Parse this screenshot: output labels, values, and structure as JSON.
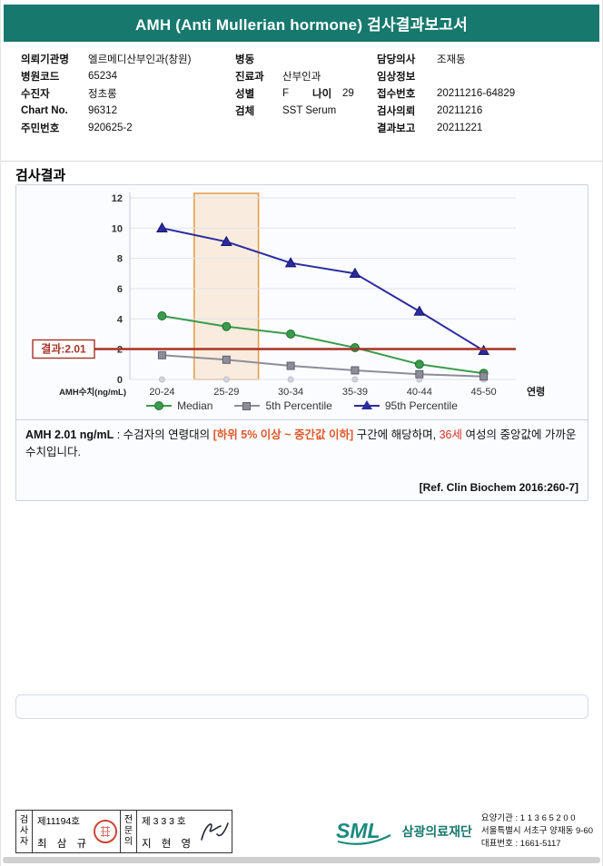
{
  "colors": {
    "teal": "#17786d",
    "highlight_orange": "#e0582a",
    "highlight_red": "#d93025"
  },
  "header": {
    "title": "AMH (Anti Mullerian hormone) 검사결과보고서"
  },
  "info": {
    "col1": [
      {
        "label": "의뢰기관명",
        "value": "엘르메디산부인과(창원)"
      },
      {
        "label": "병원코드",
        "value": "65234"
      },
      {
        "label": "수진자",
        "value": "정초롱"
      },
      {
        "label": "Chart No.",
        "value": "96312"
      },
      {
        "label": "주민번호",
        "value": "920625-2"
      }
    ],
    "col2": [
      {
        "label": "병동",
        "value": ""
      },
      {
        "label": "진료과",
        "value": "산부인과"
      },
      {
        "label": "성별",
        "value": "F",
        "label2": "나이",
        "value2": "29"
      },
      {
        "label": "검체",
        "value": "SST Serum"
      }
    ],
    "col3": [
      {
        "label": "담당의사",
        "value": "조재동"
      },
      {
        "label": "임상정보",
        "value": ""
      },
      {
        "label": "접수번호",
        "value": "20211216-64829"
      },
      {
        "label": "검사의뢰",
        "value": "20211216"
      },
      {
        "label": "결과보고",
        "value": "20211221"
      }
    ]
  },
  "section": {
    "title": "검사결과"
  },
  "chart_data": {
    "type": "line",
    "title": "",
    "categories": [
      "20-24",
      "25-29",
      "30-34",
      "35-39",
      "40-44",
      "45-50"
    ],
    "series": [
      {
        "name": "Median",
        "marker": "circle",
        "color": "#3a9c4b",
        "edge": "#1e6f35",
        "values": [
          4.2,
          3.5,
          3.0,
          2.1,
          1.0,
          0.4
        ]
      },
      {
        "name": "5th Percentile",
        "marker": "square",
        "color": "#8d8d98",
        "edge": "#606070",
        "values": [
          1.6,
          1.3,
          0.9,
          0.6,
          0.35,
          0.2
        ]
      },
      {
        "name": "95th Percentile",
        "marker": "triangle",
        "color": "#2b2b9e",
        "edge": "#15156e",
        "values": [
          10.0,
          9.1,
          7.7,
          7.0,
          4.5,
          1.9
        ]
      }
    ],
    "xlabel": "연령",
    "ylabel": "AMH수치(ng/mL)",
    "ylim": [
      0,
      12
    ],
    "yticks": [
      0,
      2,
      4,
      6,
      8,
      10,
      12
    ],
    "grid": true,
    "legend_position": "bottom",
    "result_line": {
      "value": 2.01,
      "label": "결과:2.01",
      "color": "#a93226"
    },
    "highlight_band": {
      "category": "25-29",
      "fill": "rgba(246,166,74,0.18)",
      "stroke": "#e39c44"
    }
  },
  "result_text": {
    "lead": "AMH  2.01 ng/mL",
    "part1": " : 수검자의 연령대의 ",
    "range": "[하위 5% 이상 ~ 중간값 이하]",
    "part2": " 구간에 해당하며, ",
    "age": "36세",
    "part3": " 여성의 중앙값에 가까운 수치입니다.",
    "reference": "[Ref. Clin Biochem 2016:260-7]"
  },
  "footer": {
    "examiner": {
      "role": "검사자",
      "cert": "제11194호",
      "name": "최 삼 규"
    },
    "specialist": {
      "role": "전문의",
      "cert": "제 3 3 3 호",
      "name": "지 현 영"
    },
    "org": {
      "logo": "SML",
      "name": "삼광의료재단",
      "line1": "요양기관 : 1 1 3 6 5 2 0 0",
      "line2": "서울특별시 서초구 양재동 9-60",
      "line3": "대표번호 : 1661-5117"
    }
  }
}
